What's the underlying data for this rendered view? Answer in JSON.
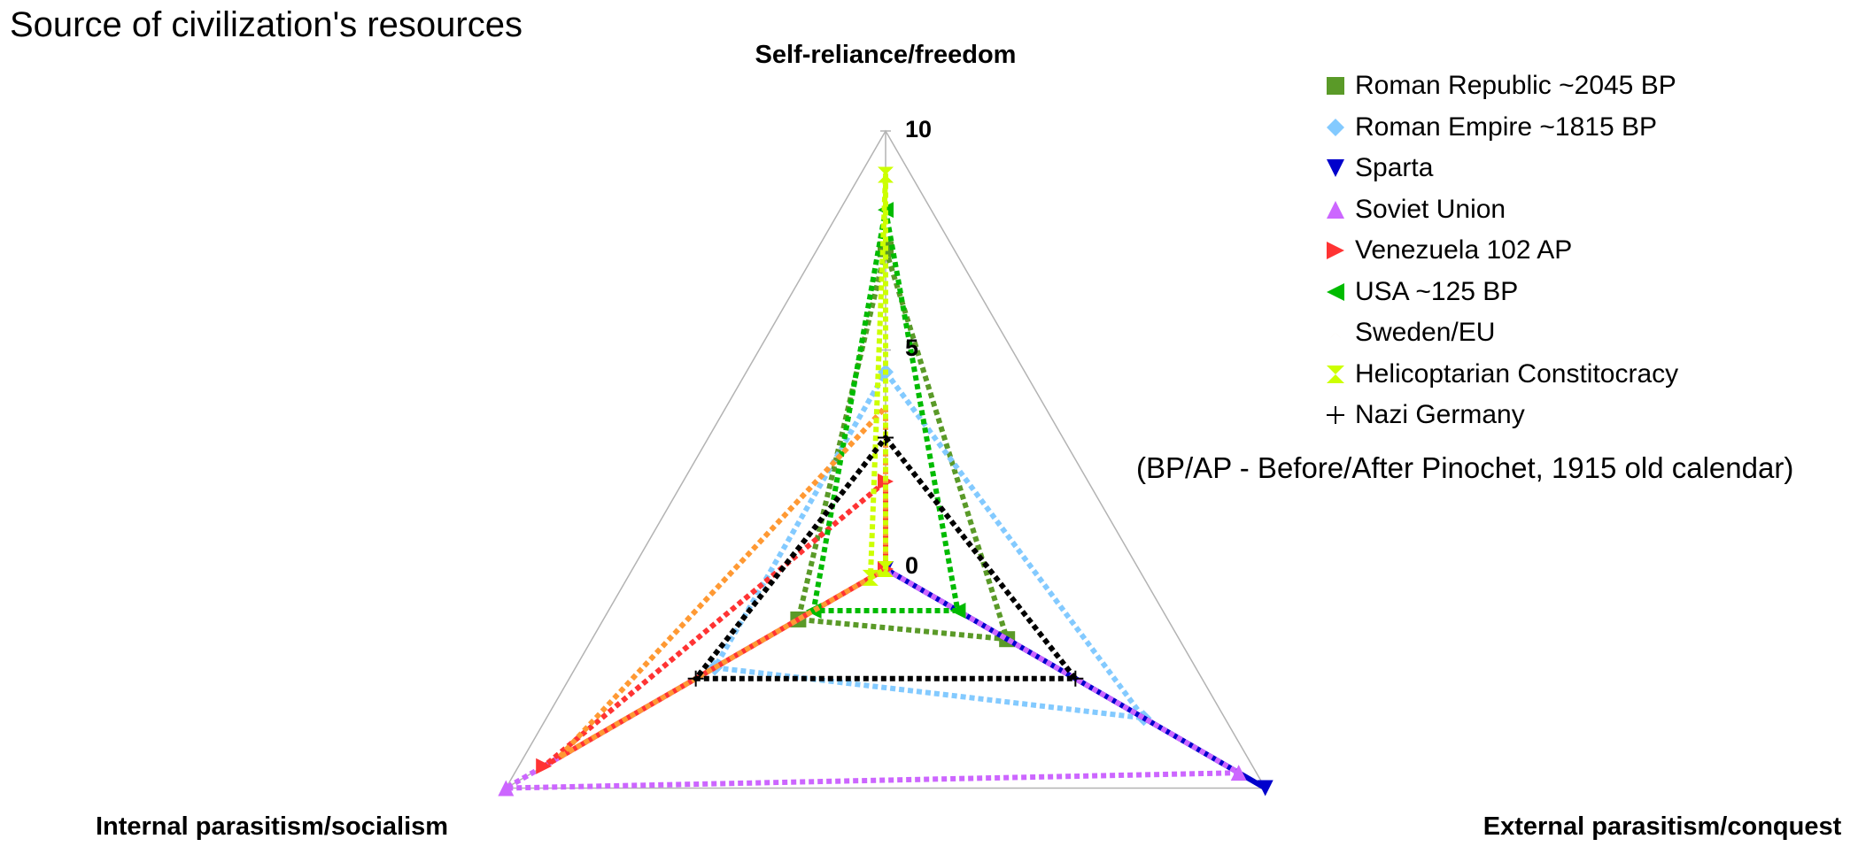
{
  "chart_data": {
    "type": "radar",
    "title": "Source of civilization's resources",
    "axes": [
      "Self-reliance/freedom",
      "External parasitism/conquest",
      "Internal parasitism/socialism"
    ],
    "r_range": [
      0,
      10
    ],
    "ticks": [
      "0",
      "5",
      "10"
    ],
    "series": [
      {
        "name": "Roman Republic ~2045 BP",
        "values": [
          7.3,
          3.2,
          2.3
        ],
        "color": "#5a9a28",
        "marker": "square"
      },
      {
        "name": "Roman Empire ~1815 BP",
        "values": [
          4.5,
          6.8,
          4.5
        ],
        "color": "#83caff",
        "marker": "diamond"
      },
      {
        "name": "Sparta",
        "values": [
          0,
          10,
          0
        ],
        "color": "#0000cc",
        "marker": "triangle-down"
      },
      {
        "name": "Soviet Union",
        "values": [
          0,
          9.3,
          10
        ],
        "color": "#cc66ff",
        "marker": "triangle-up"
      },
      {
        "name": "Venezuela 102 AP",
        "values": [
          2.0,
          0,
          9.0
        ],
        "color": "#ff3333",
        "marker": "triangle-right"
      },
      {
        "name": "USA ~125 BP",
        "values": [
          8.2,
          1.9,
          1.9
        ],
        "color": "#00bb00",
        "marker": "triangle-left"
      },
      {
        "name": "Sweden/EU",
        "values": [
          3.7,
          0,
          8.6
        ],
        "color": "#ff9933",
        "marker": "bowtie"
      },
      {
        "name": "Helicoptarian Constitocracy",
        "values": [
          9.0,
          0,
          0.4
        ],
        "color": "#ccff00",
        "marker": "hourglass"
      },
      {
        "name": "Nazi Germany",
        "values": [
          3.0,
          5.0,
          5.0
        ],
        "color": "#000000",
        "marker": "plus"
      }
    ]
  },
  "note": "(BP/AP - Before/After Pinochet, 1915 old calendar)"
}
